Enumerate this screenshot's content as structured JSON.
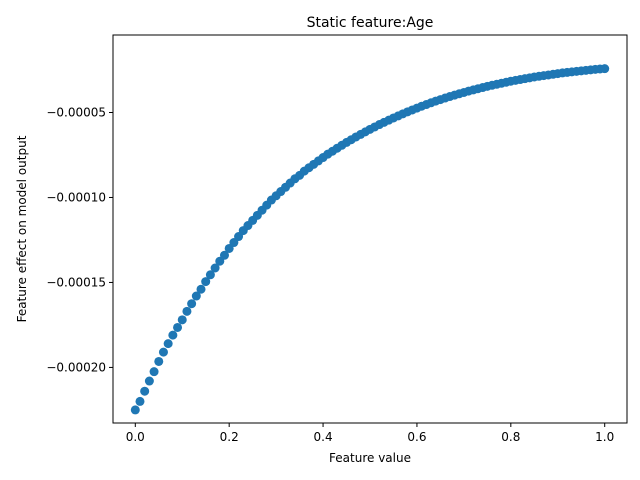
{
  "chart_data": {
    "type": "scatter",
    "title": "Static feature:Age",
    "xlabel": "Feature value",
    "ylabel": "Feature effect on model output",
    "xlim": [
      -0.0475,
      1.0475
    ],
    "ylim": [
      -0.0002327,
      -4.4e-06
    ],
    "xticks": [
      0.0,
      0.2,
      0.4,
      0.6,
      0.8,
      1.0
    ],
    "xtick_labels": [
      "0.0",
      "0.2",
      "0.4",
      "0.6",
      "0.8",
      "1.0"
    ],
    "yticks": [
      -0.0002,
      -0.00015,
      -0.0001,
      -5e-05
    ],
    "ytick_labels": [
      "−0.00020",
      "−0.00015",
      "−0.00010",
      "−0.00005"
    ],
    "grid": false,
    "marker_color": "#1f77b4",
    "series": [
      {
        "x": [
          0.0,
          0.01,
          0.02,
          0.03,
          0.04,
          0.05,
          0.06,
          0.07,
          0.08,
          0.09,
          0.1,
          0.11,
          0.12,
          0.13,
          0.14,
          0.15,
          0.16,
          0.17,
          0.18,
          0.19,
          0.2,
          0.21,
          0.22,
          0.23,
          0.24,
          0.25,
          0.26,
          0.27,
          0.28,
          0.29,
          0.3,
          0.31,
          0.32,
          0.33,
          0.34,
          0.35,
          0.36,
          0.37,
          0.38,
          0.39,
          0.4,
          0.41,
          0.42,
          0.43,
          0.44,
          0.45,
          0.46,
          0.47,
          0.48,
          0.49,
          0.5,
          0.51,
          0.52,
          0.53,
          0.54,
          0.55,
          0.56,
          0.57,
          0.58,
          0.59,
          0.6,
          0.61,
          0.62,
          0.63,
          0.64,
          0.65,
          0.66,
          0.67,
          0.68,
          0.69,
          0.7,
          0.71,
          0.72,
          0.73,
          0.74,
          0.75,
          0.76,
          0.77,
          0.78,
          0.79,
          0.8,
          0.81,
          0.82,
          0.83,
          0.84,
          0.85,
          0.86,
          0.87,
          0.88,
          0.89,
          0.9,
          0.91,
          0.92,
          0.93,
          0.94,
          0.95,
          0.96,
          0.97,
          0.98,
          0.99,
          1.0
        ],
        "y": [
          -0.000225,
          -0.00022,
          -0.000214,
          -0.000208,
          -0.0002025,
          -0.0001965,
          -0.000191,
          -0.000186,
          -0.000181,
          -0.0001765,
          -0.000172,
          -0.000167,
          -0.0001625,
          -0.000158,
          -0.000154,
          -0.0001495,
          -0.0001455,
          -0.0001415,
          -0.0001375,
          -0.000134,
          -0.00013,
          -0.0001265,
          -0.000123,
          -0.0001195,
          -0.0001165,
          -0.0001135,
          -0.0001105,
          -0.0001075,
          -0.0001045,
          -0.0001015,
          -9.9e-05,
          -9.65e-05,
          -9.4e-05,
          -9.15e-05,
          -8.9e-05,
          -8.7e-05,
          -8.45e-05,
          -8.25e-05,
          -8.05e-05,
          -7.85e-05,
          -7.65e-05,
          -7.45e-05,
          -7.28e-05,
          -7.1e-05,
          -6.93e-05,
          -6.76e-05,
          -6.6e-05,
          -6.44e-05,
          -6.29e-05,
          -6.14e-05,
          -5.99e-05,
          -5.85e-05,
          -5.71e-05,
          -5.58e-05,
          -5.45e-05,
          -5.32e-05,
          -5.2e-05,
          -5.08e-05,
          -4.96e-05,
          -4.85e-05,
          -4.74e-05,
          -4.63e-05,
          -4.53e-05,
          -4.43e-05,
          -4.33e-05,
          -4.24e-05,
          -4.15e-05,
          -4.06e-05,
          -3.98e-05,
          -3.9e-05,
          -3.82e-05,
          -3.74e-05,
          -3.67e-05,
          -3.6e-05,
          -3.53e-05,
          -3.46e-05,
          -3.4e-05,
          -3.34e-05,
          -3.28e-05,
          -3.22e-05,
          -3.16e-05,
          -3.11e-05,
          -3.06e-05,
          -3.01e-05,
          -2.96e-05,
          -2.91e-05,
          -2.87e-05,
          -2.83e-05,
          -2.79e-05,
          -2.75e-05,
          -2.71e-05,
          -2.67e-05,
          -2.64e-05,
          -2.61e-05,
          -2.58e-05,
          -2.55e-05,
          -2.52e-05,
          -2.49e-05,
          -2.46e-05,
          -2.44e-05,
          -2.42e-05
        ]
      }
    ]
  }
}
